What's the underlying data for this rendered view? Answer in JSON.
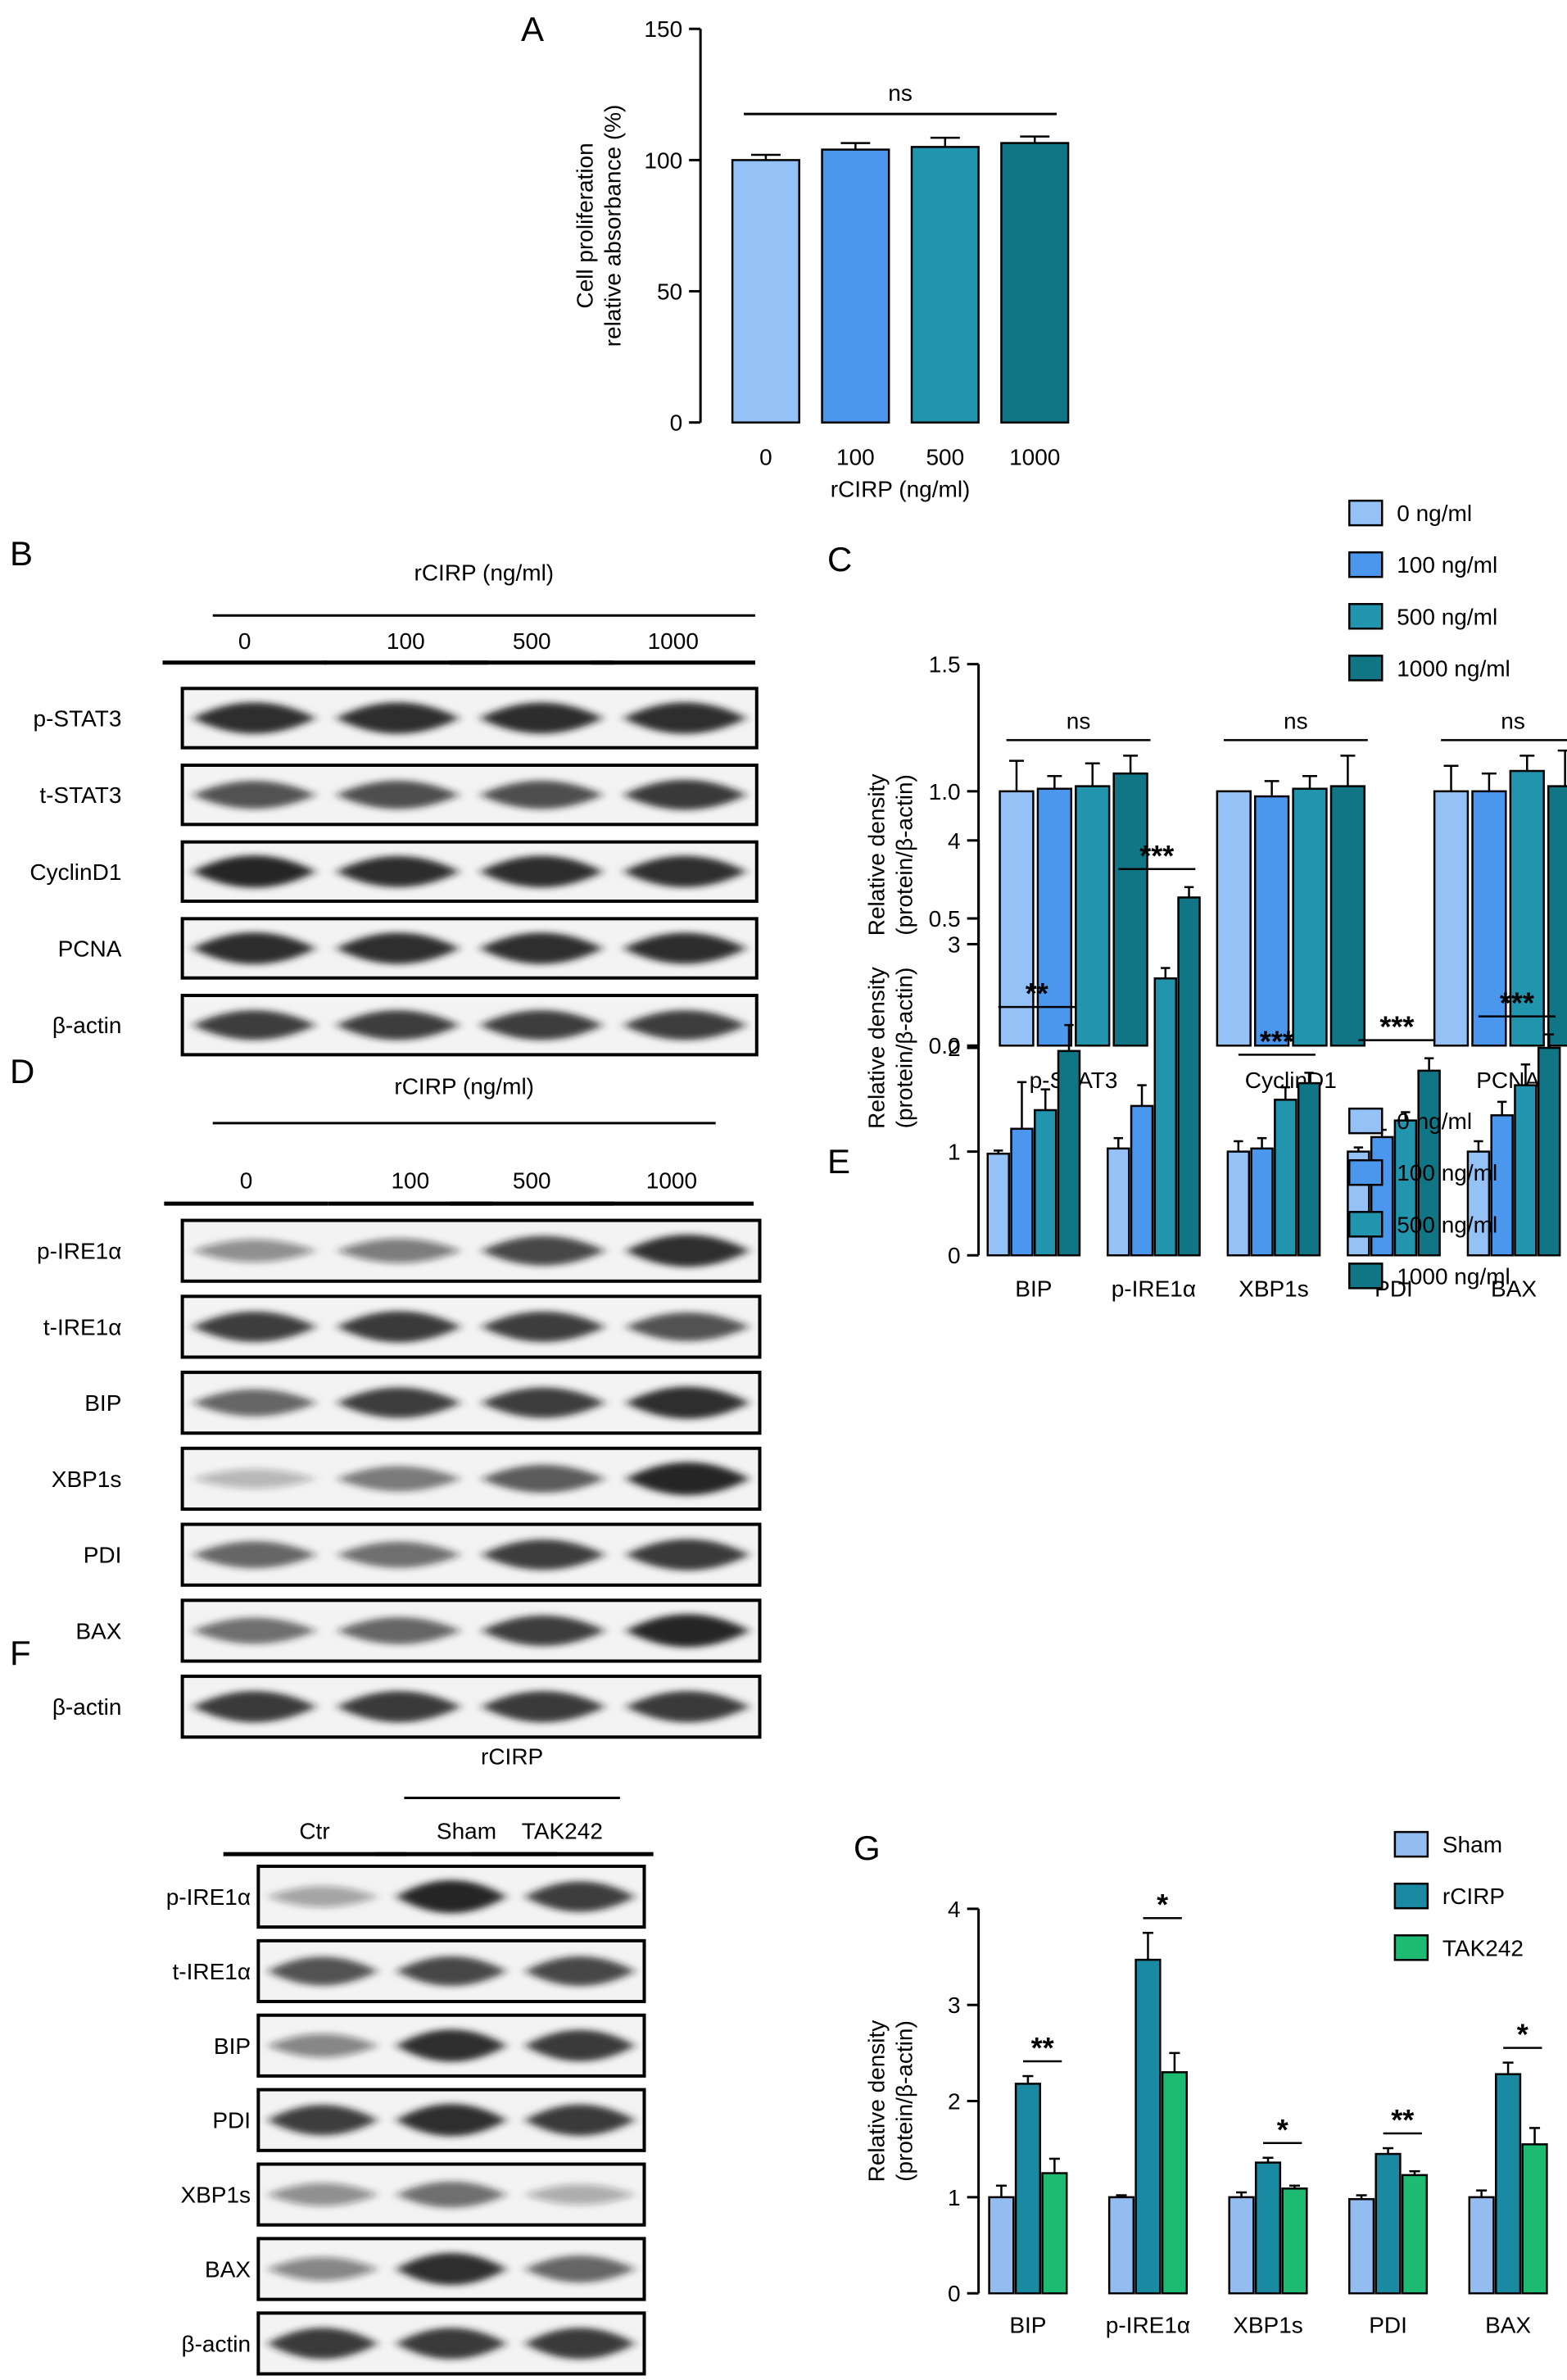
{
  "colors": {
    "c0": "#94c2f7",
    "c100": "#4c97ee",
    "c500": "#2195ad",
    "c1000": "#107686",
    "sham": "#93bcf0",
    "rcirp": "#1a8aa2",
    "tak": "#1dbb72",
    "axis": "#000000",
    "band": "#1b1b1b"
  },
  "panels": {
    "A": {
      "letter": "A"
    },
    "B": {
      "letter": "B",
      "header": "rCIRP (ng/ml)",
      "lanes": [
        "0",
        "100",
        "500",
        "1000"
      ],
      "rows": [
        "p-STAT3",
        "t-STAT3",
        "CyclinD1",
        "PCNA",
        "β-actin"
      ],
      "intensity": [
        [
          0.9,
          0.9,
          0.88,
          0.9
        ],
        [
          0.7,
          0.72,
          0.72,
          0.82
        ],
        [
          0.95,
          0.88,
          0.92,
          0.9
        ],
        [
          0.92,
          0.9,
          0.9,
          0.88
        ],
        [
          0.8,
          0.8,
          0.8,
          0.8
        ]
      ]
    },
    "C": {
      "letter": "C"
    },
    "D": {
      "letter": "D",
      "header": "rCIRP (ng/ml)",
      "lanes": [
        "0",
        "100",
        "500",
        "1000"
      ],
      "rows": [
        "p-IRE1α",
        "t-IRE1α",
        "BIP",
        "XBP1s",
        "PDI",
        "BAX",
        "β-actin"
      ],
      "intensity": [
        [
          0.35,
          0.45,
          0.75,
          0.9
        ],
        [
          0.8,
          0.85,
          0.8,
          0.7
        ],
        [
          0.6,
          0.8,
          0.8,
          0.9
        ],
        [
          0.15,
          0.5,
          0.65,
          0.95
        ],
        [
          0.6,
          0.55,
          0.8,
          0.85
        ],
        [
          0.55,
          0.6,
          0.8,
          0.95
        ],
        [
          0.85,
          0.85,
          0.85,
          0.85
        ]
      ]
    },
    "E": {
      "letter": "E"
    },
    "F": {
      "letter": "F",
      "group_header": "rCIRP",
      "lanes": [
        "Ctr",
        "Sham",
        "TAK242"
      ],
      "rows": [
        "p-IRE1α",
        "t-IRE1α",
        "BIP",
        "PDI",
        "XBP1s",
        "BAX",
        "β-actin"
      ],
      "intensity": [
        [
          0.25,
          0.95,
          0.8
        ],
        [
          0.7,
          0.75,
          0.75
        ],
        [
          0.4,
          0.9,
          0.85
        ],
        [
          0.8,
          0.9,
          0.85
        ],
        [
          0.35,
          0.55,
          0.2
        ],
        [
          0.4,
          0.9,
          0.6
        ],
        [
          0.85,
          0.85,
          0.85
        ]
      ]
    },
    "G": {
      "letter": "G"
    }
  },
  "chart_data": [
    {
      "panel": "A",
      "type": "bar",
      "categories": [
        "0",
        "100",
        "500",
        "1000"
      ],
      "values": [
        100,
        104,
        105,
        106.5
      ],
      "errors": [
        2,
        2.5,
        3.5,
        2.5
      ],
      "xlabel": "rCIRP (ng/ml)",
      "ylabel": [
        "Cell proliferation",
        "relative absorbance (%)"
      ],
      "ylim": [
        0,
        150
      ],
      "yticks": [
        "0",
        "50",
        "100",
        "150"
      ],
      "significance": [
        {
          "label": "ns",
          "from": 0,
          "to": 3
        }
      ]
    },
    {
      "panel": "C",
      "type": "bar",
      "categories": [
        "p-STAT3",
        "CyclinD1",
        "PCNA"
      ],
      "series": [
        {
          "name": "0 ng/ml",
          "values": [
            1.0,
            1.0,
            1.0
          ],
          "errors": [
            0.12,
            0.0,
            0.1
          ]
        },
        {
          "name": "100 ng/ml",
          "values": [
            1.01,
            0.98,
            1.0
          ],
          "errors": [
            0.05,
            0.06,
            0.07
          ]
        },
        {
          "name": "500 ng/ml",
          "values": [
            1.02,
            1.01,
            1.08
          ],
          "errors": [
            0.09,
            0.05,
            0.06
          ]
        },
        {
          "name": "1000 ng/ml",
          "values": [
            1.07,
            1.02,
            1.02
          ],
          "errors": [
            0.07,
            0.12,
            0.14
          ]
        }
      ],
      "ylabel": [
        "Relative density",
        "(protein/β-actin)"
      ],
      "ylim": [
        0,
        1.5
      ],
      "yticks": [
        "0.0",
        "0.5",
        "1.0",
        "1.5"
      ],
      "significance": [
        "ns",
        "ns",
        "ns"
      ],
      "legend": "top-right"
    },
    {
      "panel": "E",
      "type": "bar",
      "categories": [
        "BIP",
        "p-IRE1α",
        "XBP1s",
        "PDI",
        "BAX"
      ],
      "series": [
        {
          "name": "0 ng/ml",
          "values": [
            0.98,
            1.03,
            1.0,
            1.0,
            1.0
          ],
          "errors": [
            0.03,
            0.1,
            0.1,
            0.04,
            0.1
          ]
        },
        {
          "name": "100 ng/ml",
          "values": [
            1.22,
            1.44,
            1.03,
            1.14,
            1.35
          ],
          "errors": [
            0.45,
            0.2,
            0.1,
            0.07,
            0.13
          ]
        },
        {
          "name": "500 ng/ml",
          "values": [
            1.4,
            2.67,
            1.5,
            1.3,
            1.64
          ],
          "errors": [
            0.2,
            0.1,
            0.12,
            0.08,
            0.2
          ]
        },
        {
          "name": "1000 ng/ml",
          "values": [
            1.97,
            3.45,
            1.66,
            1.78,
            2.0
          ],
          "errors": [
            0.25,
            0.1,
            0.1,
            0.12,
            0.13
          ]
        }
      ],
      "ylabel": [
        "Relative density",
        "(protein/β-actin)"
      ],
      "ylim": [
        0,
        4
      ],
      "yticks": [
        "0",
        "1",
        "2",
        "3",
        "4"
      ],
      "significance": [
        "**",
        "***",
        "***",
        "***",
        "***"
      ],
      "legend": "top-right"
    },
    {
      "panel": "G",
      "type": "bar",
      "categories": [
        "BIP",
        "p-IRE1α",
        "XBP1s",
        "PDI",
        "BAX"
      ],
      "series": [
        {
          "name": "Sham",
          "values": [
            1.0,
            1.0,
            1.0,
            0.98,
            1.0
          ],
          "errors": [
            0.12,
            0.02,
            0.05,
            0.04,
            0.07
          ]
        },
        {
          "name": "rCIRP",
          "values": [
            2.18,
            3.47,
            1.36,
            1.45,
            2.28
          ],
          "errors": [
            0.08,
            0.28,
            0.05,
            0.06,
            0.12
          ]
        },
        {
          "name": "TAK242",
          "values": [
            1.25,
            2.3,
            1.09,
            1.23,
            1.55
          ],
          "errors": [
            0.15,
            0.2,
            0.03,
            0.04,
            0.17
          ]
        }
      ],
      "ylabel": [
        "Relative density",
        "(protein/β-actin)"
      ],
      "ylim": [
        0,
        4
      ],
      "yticks": [
        "0",
        "1",
        "2",
        "3",
        "4"
      ],
      "significance": [
        "**",
        "*",
        "*",
        "**",
        "*"
      ],
      "legend": "top-right"
    }
  ]
}
